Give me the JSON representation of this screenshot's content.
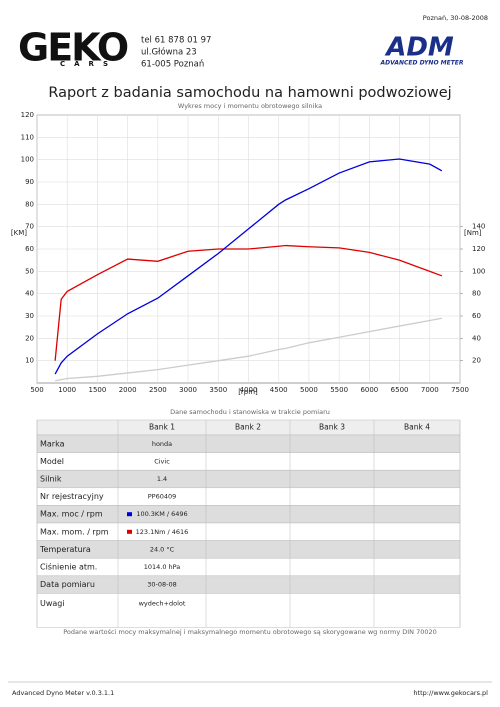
{
  "header": {
    "date": "Poznań, 30-08-2008",
    "contact": [
      "tel 61 878 01 97",
      "ul.Główna 23",
      "61-005 Poznań"
    ],
    "logo_left": {
      "main": "GEKO",
      "sub": "CARS"
    },
    "logo_right": {
      "main": "ADM",
      "sub": "ADVANCED DYNO METER"
    }
  },
  "chart_data": {
    "type": "line",
    "title": "Raport z badania samochodu na hamowni podwoziowej",
    "subtitle": "Wykres mocy i momentu obrotowego silnika",
    "xlabel": "[rpm]",
    "ylabel": "[KM]",
    "y2label": "[Nm]",
    "x": [
      800,
      900,
      1000,
      1500,
      2000,
      2500,
      3000,
      3500,
      4000,
      4500,
      4616,
      5000,
      5500,
      6000,
      6496,
      7000,
      7200
    ],
    "xlim": [
      500,
      7500
    ],
    "xticks": [
      500,
      1000,
      1500,
      2000,
      2500,
      3000,
      3500,
      4000,
      4500,
      5000,
      5500,
      6000,
      6500,
      7000,
      7500
    ],
    "ylim": [
      0,
      120
    ],
    "yticks": [
      10,
      20,
      30,
      40,
      50,
      60,
      70,
      80,
      90,
      100,
      110,
      120
    ],
    "y2lim": [
      0,
      240
    ],
    "y2ticks": [
      20,
      40,
      60,
      80,
      100,
      120,
      140
    ],
    "grid": true,
    "series": [
      {
        "color": "#0000dd",
        "values": [
          4,
          9,
          12,
          22,
          31,
          38,
          48,
          58,
          69,
          80,
          82,
          87,
          94,
          99,
          100.3,
          98,
          95
        ]
      },
      {
        "color": "#dd0000",
        "axis": "y2",
        "values": [
          20,
          75,
          82,
          97,
          111,
          109,
          118,
          120,
          120,
          122.5,
          123.1,
          122,
          121,
          117,
          110,
          100,
          96
        ]
      },
      {
        "color": "#cccccc",
        "values": [
          1,
          1.5,
          2,
          3,
          4.5,
          6,
          8,
          10,
          12,
          15,
          15.5,
          18,
          20.5,
          23,
          25.5,
          28,
          29
        ]
      }
    ]
  },
  "table": {
    "caption": "Dane samochodu i stanowiska w trakcie pomiaru",
    "columns": [
      "Bank 1",
      "Bank 2",
      "Bank 3",
      "Bank 4"
    ],
    "rows": [
      [
        "Marka",
        "honda"
      ],
      [
        "Model",
        "Civic"
      ],
      [
        "Silnik",
        "1.4"
      ],
      [
        "Nr rejestracyjny",
        "PP60409"
      ],
      [
        "Max. moc / rpm",
        "100.3KM / 6496"
      ],
      [
        "Max. mom. / rpm",
        "123.1Nm / 4616"
      ],
      [
        "Temperatura",
        "24.0 °C"
      ],
      [
        "Ciśnienie atm.",
        "1014.0 hPa"
      ],
      [
        "Data pomiaru",
        "30-08-08"
      ],
      [
        "Uwagi",
        "wydech+dolot"
      ]
    ],
    "note": "Podane wartości mocy maksymalnej i maksymalnego momentu obrotowego są skorygowane wg normy DIN 70020"
  },
  "footer": {
    "left": "Advanced Dyno Meter v.0.3.1.1",
    "right": "http://www.gekocars.pl"
  }
}
